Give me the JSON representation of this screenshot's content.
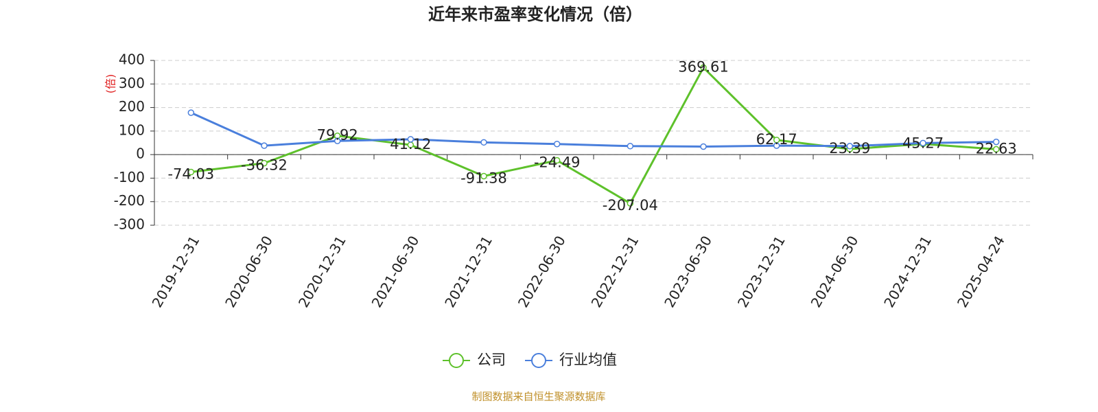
{
  "chart_data": {
    "type": "line",
    "title": "近年来市盈率变化情况（倍）",
    "y_label": "(倍)",
    "source": "制图数据来自恒生聚源数据库",
    "categories": [
      "2019-12-31",
      "2020-06-30",
      "2020-12-31",
      "2021-06-30",
      "2021-12-31",
      "2022-06-30",
      "2022-12-31",
      "2023-06-30",
      "2023-12-31",
      "2024-06-30",
      "2024-12-31",
      "2025-04-24"
    ],
    "series": [
      {
        "name": "公司",
        "color": "#5ec12b",
        "values": [
          -74.03,
          -36.32,
          79.92,
          41.12,
          -91.38,
          -24.49,
          -207.04,
          369.61,
          62.17,
          23.39,
          45.27,
          22.63
        ]
      },
      {
        "name": "行业均值",
        "color": "#4a7fdc",
        "values": [
          178,
          38,
          58,
          65,
          52,
          45,
          36,
          34,
          38,
          36,
          49,
          54
        ]
      }
    ],
    "ylim": [
      -300,
      400
    ],
    "yticks": [
      -300,
      -200,
      -100,
      0,
      100,
      200,
      300,
      400
    ],
    "grid": true
  }
}
